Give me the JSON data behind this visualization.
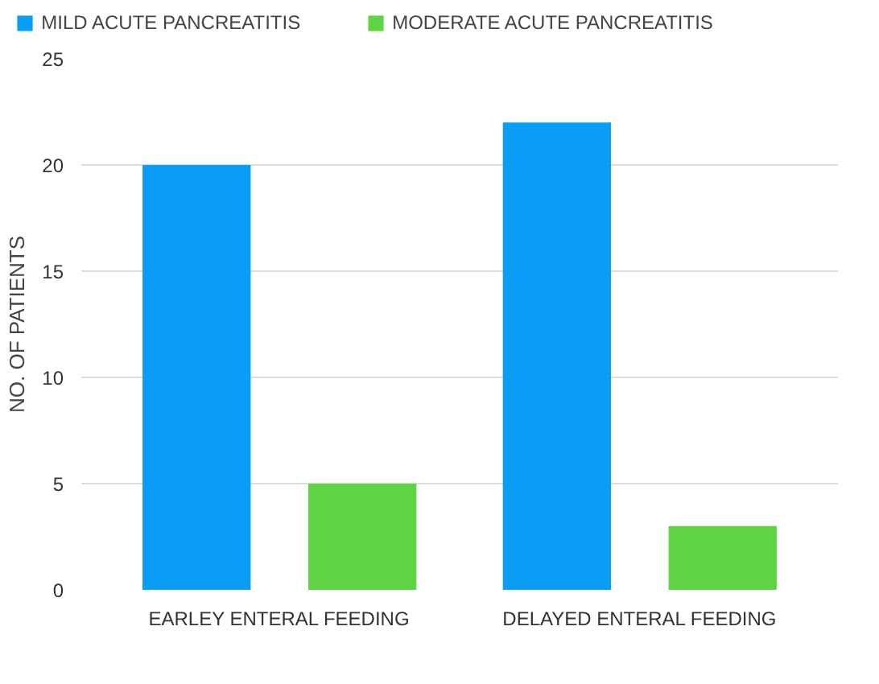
{
  "chart_data": {
    "type": "bar",
    "ylabel": "NO. OF PATIENTS",
    "categories": [
      "EARLEY ENTERAL FEEDING",
      "DELAYED ENTERAL FEEDING"
    ],
    "series": [
      {
        "name": "MILD ACUTE PANCREATITIS",
        "color": "#0a9df5",
        "values": [
          20,
          22
        ]
      },
      {
        "name": "MODERATE ACUTE PANCREATITIS",
        "color": "#5ed443",
        "values": [
          5,
          3
        ]
      }
    ],
    "ylim": [
      0,
      25
    ],
    "yticks": [
      0,
      5,
      10,
      15,
      20,
      25
    ],
    "grid": "y",
    "legend": "top left"
  }
}
